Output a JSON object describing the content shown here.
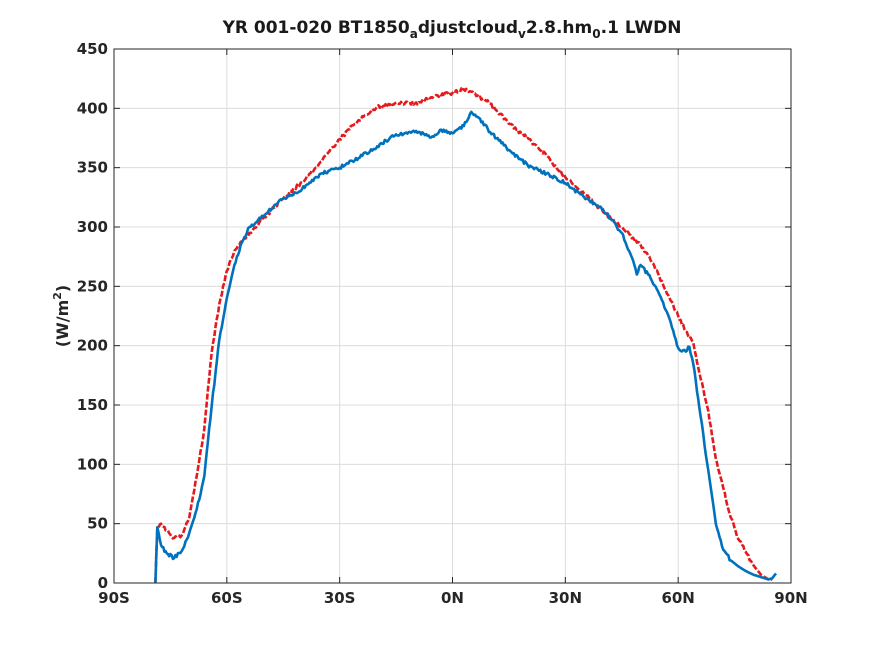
{
  "chart_data": {
    "type": "line",
    "title": {
      "parts": [
        {
          "text": "YR 001-020 BT1850",
          "sub": false
        },
        {
          "text": "a",
          "sub": true
        },
        {
          "text": "djustcloud",
          "sub": false
        },
        {
          "text": "v",
          "sub": true
        },
        {
          "text": "2.8.hm",
          "sub": false
        },
        {
          "text": "0",
          "sub": true
        },
        {
          "text": ".1 LWDN",
          "sub": false
        }
      ]
    },
    "xlabel": "",
    "ylabel": {
      "prefix": "(W/m",
      "sup": "2",
      "suffix": ")"
    },
    "xlim": [
      -90,
      90
    ],
    "ylim": [
      0,
      450
    ],
    "x_ticks": [
      {
        "value": -90,
        "label": "90S"
      },
      {
        "value": -60,
        "label": "60S"
      },
      {
        "value": -30,
        "label": "30S"
      },
      {
        "value": 0,
        "label": "0N"
      },
      {
        "value": 30,
        "label": "30N"
      },
      {
        "value": 60,
        "label": "60N"
      },
      {
        "value": 90,
        "label": "90N"
      }
    ],
    "y_ticks": [
      0,
      50,
      100,
      150,
      200,
      250,
      300,
      350,
      400,
      450
    ],
    "grid": true,
    "legend": "none",
    "series": [
      {
        "color": "#e41a1c",
        "dash": "dashed",
        "x": [
          -79,
          -78.5,
          -77.5,
          -76,
          -74,
          -72,
          -70,
          -68,
          -66,
          -64,
          -62,
          -60,
          -58,
          -56,
          -54,
          -50,
          -45,
          -40,
          -35,
          -30,
          -25,
          -20,
          -15,
          -10,
          -5,
          0,
          3,
          5,
          8,
          10,
          15,
          20,
          25,
          30,
          35,
          40,
          45,
          48,
          50,
          52,
          55,
          58,
          60,
          62,
          64,
          66,
          68,
          70,
          72,
          74,
          76,
          78,
          80,
          82,
          84,
          85
        ],
        "y": [
          0,
          45,
          50,
          44,
          38,
          40,
          55,
          90,
          130,
          195,
          235,
          263,
          280,
          288,
          295,
          308,
          324,
          338,
          355,
          374,
          390,
          401,
          405,
          404,
          410,
          413,
          416,
          414,
          408,
          404,
          387,
          375,
          360,
          342,
          328,
          313,
          300,
          291,
          285,
          276,
          258,
          238,
          225,
          212,
          203,
          172,
          145,
          105,
          80,
          55,
          37,
          26,
          15,
          7,
          3,
          3
        ]
      },
      {
        "color": "#0072bd",
        "dash": "solid",
        "x": [
          -79,
          -78.5,
          -77.5,
          -76,
          -74,
          -72,
          -70,
          -68,
          -66,
          -64,
          -62,
          -60,
          -58,
          -56,
          -54,
          -50,
          -45,
          -40,
          -35,
          -30,
          -25,
          -20,
          -15,
          -10,
          -5,
          -3,
          0,
          3,
          5,
          7,
          10,
          15,
          20,
          25,
          30,
          35,
          40,
          45,
          48,
          49,
          50,
          52,
          55,
          58,
          60,
          62,
          63,
          64,
          66,
          68,
          70,
          72,
          74,
          76,
          78,
          80,
          82,
          84,
          85,
          86
        ],
        "y": [
          0,
          47,
          32,
          25,
          21,
          27,
          42,
          62,
          90,
          150,
          205,
          240,
          268,
          287,
          300,
          310,
          324,
          332,
          345,
          350,
          358,
          368,
          378,
          380,
          376,
          382,
          379,
          385,
          397,
          392,
          380,
          365,
          352,
          345,
          337,
          325,
          315,
          295,
          272,
          260,
          268,
          260,
          243,
          220,
          198,
          195,
          199,
          185,
          140,
          95,
          50,
          28,
          19,
          14,
          10,
          7,
          5,
          3,
          4,
          8
        ]
      }
    ]
  }
}
